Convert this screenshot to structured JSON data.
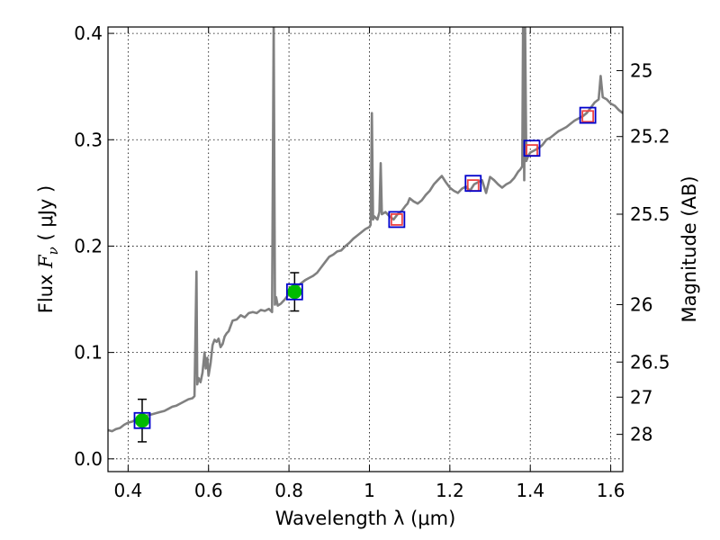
{
  "chart_data": {
    "type": "line",
    "xlabel": "Wavelength  λ (μm)",
    "ylabel_prefix": "Flux  ",
    "ylabel_symbol": "F",
    "ylabel_subscript": "ν",
    "ylabel_suffix": "  ( μJy )",
    "y2label": "Magnitude (AB)",
    "xlim": [
      0.35,
      1.63
    ],
    "ylim": [
      -0.012,
      0.406
    ],
    "grid": true,
    "xticks": [
      {
        "value": 0.4,
        "label": "0.4"
      },
      {
        "value": 0.6,
        "label": "0.6"
      },
      {
        "value": 0.8,
        "label": "0.8"
      },
      {
        "value": 1.0,
        "label": "1"
      },
      {
        "value": 1.2,
        "label": "1.2"
      },
      {
        "value": 1.4,
        "label": "1.4"
      },
      {
        "value": 1.6,
        "label": "1.6"
      }
    ],
    "yticks": [
      {
        "value": 0.0,
        "label": "0.0"
      },
      {
        "value": 0.1,
        "label": "0.1"
      },
      {
        "value": 0.2,
        "label": "0.2"
      },
      {
        "value": 0.3,
        "label": "0.3"
      },
      {
        "value": 0.4,
        "label": "0.4"
      }
    ],
    "y2ticks": [
      {
        "label": "25",
        "flux": 0.365
      },
      {
        "label": "25.2",
        "flux": 0.303
      },
      {
        "label": "25.5",
        "flux": 0.23
      },
      {
        "label": "26",
        "flux": 0.145
      },
      {
        "label": "26.5",
        "flux": 0.091
      },
      {
        "label": "27",
        "flux": 0.058
      },
      {
        "label": "28",
        "flux": 0.023
      }
    ],
    "colors": {
      "spectrum": "#808080",
      "model_box": "#0000cc",
      "observed_point": "#00bb00",
      "predicted_point": "#ee4444",
      "errorbar": "#000000"
    },
    "series": [
      {
        "kind": "model-spectrum",
        "x": [
          0.35,
          0.36,
          0.37,
          0.38,
          0.39,
          0.4,
          0.41,
          0.42,
          0.43,
          0.44,
          0.45,
          0.46,
          0.47,
          0.48,
          0.49,
          0.5,
          0.51,
          0.52,
          0.53,
          0.54,
          0.55,
          0.56,
          0.565,
          0.57,
          0.572,
          0.575,
          0.58,
          0.585,
          0.59,
          0.593,
          0.597,
          0.6,
          0.605,
          0.61,
          0.615,
          0.62,
          0.625,
          0.63,
          0.635,
          0.64,
          0.645,
          0.65,
          0.655,
          0.66,
          0.67,
          0.68,
          0.69,
          0.7,
          0.71,
          0.72,
          0.73,
          0.74,
          0.75,
          0.758,
          0.762,
          0.765,
          0.768,
          0.772,
          0.78,
          0.79,
          0.8,
          0.81,
          0.82,
          0.83,
          0.84,
          0.85,
          0.86,
          0.87,
          0.88,
          0.89,
          0.9,
          0.91,
          0.92,
          0.93,
          0.94,
          0.95,
          0.96,
          0.97,
          0.98,
          0.99,
          1.0,
          1.003,
          1.006,
          1.009,
          1.012,
          1.02,
          1.025,
          1.028,
          1.031,
          1.04,
          1.05,
          1.06,
          1.07,
          1.08,
          1.09,
          1.095,
          1.1,
          1.11,
          1.12,
          1.13,
          1.14,
          1.15,
          1.16,
          1.17,
          1.18,
          1.19,
          1.2,
          1.21,
          1.22,
          1.23,
          1.24,
          1.25,
          1.26,
          1.27,
          1.28,
          1.29,
          1.3,
          1.31,
          1.32,
          1.33,
          1.34,
          1.35,
          1.36,
          1.37,
          1.375,
          1.38,
          1.382,
          1.385,
          1.387,
          1.39,
          1.395,
          1.4,
          1.41,
          1.42,
          1.43,
          1.44,
          1.45,
          1.46,
          1.47,
          1.48,
          1.49,
          1.5,
          1.51,
          1.52,
          1.53,
          1.54,
          1.55,
          1.56,
          1.57,
          1.575,
          1.58,
          1.59,
          1.6,
          1.61,
          1.62,
          1.63
        ],
        "y": [
          0.027,
          0.026,
          0.028,
          0.029,
          0.032,
          0.034,
          0.035,
          0.037,
          0.038,
          0.04,
          0.041,
          0.042,
          0.043,
          0.044,
          0.045,
          0.047,
          0.049,
          0.05,
          0.052,
          0.054,
          0.056,
          0.057,
          0.059,
          0.176,
          0.07,
          0.076,
          0.072,
          0.081,
          0.1,
          0.085,
          0.095,
          0.078,
          0.09,
          0.107,
          0.112,
          0.11,
          0.113,
          0.105,
          0.108,
          0.115,
          0.118,
          0.12,
          0.125,
          0.13,
          0.131,
          0.135,
          0.133,
          0.137,
          0.138,
          0.137,
          0.14,
          0.139,
          0.141,
          0.138,
          0.41,
          0.145,
          0.152,
          0.144,
          0.146,
          0.15,
          0.155,
          0.158,
          0.162,
          0.165,
          0.168,
          0.17,
          0.172,
          0.175,
          0.18,
          0.185,
          0.19,
          0.192,
          0.195,
          0.196,
          0.2,
          0.203,
          0.207,
          0.21,
          0.213,
          0.216,
          0.218,
          0.22,
          0.325,
          0.225,
          0.228,
          0.225,
          0.232,
          0.278,
          0.23,
          0.232,
          0.228,
          0.225,
          0.23,
          0.233,
          0.238,
          0.24,
          0.245,
          0.242,
          0.24,
          0.243,
          0.248,
          0.252,
          0.258,
          0.262,
          0.266,
          0.26,
          0.255,
          0.252,
          0.25,
          0.254,
          0.256,
          0.252,
          0.258,
          0.26,
          0.262,
          0.25,
          0.265,
          0.262,
          0.258,
          0.255,
          0.258,
          0.26,
          0.264,
          0.27,
          0.272,
          0.275,
          0.41,
          0.262,
          0.41,
          0.28,
          0.285,
          0.288,
          0.29,
          0.292,
          0.295,
          0.3,
          0.302,
          0.305,
          0.308,
          0.31,
          0.312,
          0.315,
          0.318,
          0.32,
          0.322,
          0.325,
          0.33,
          0.335,
          0.338,
          0.36,
          0.34,
          0.338,
          0.334,
          0.332,
          0.328,
          0.325
        ]
      },
      {
        "kind": "observed-photometry",
        "points": [
          {
            "x": 0.435,
            "y": 0.036,
            "err": 0.02
          },
          {
            "x": 0.814,
            "y": 0.157,
            "err": 0.018
          }
        ]
      },
      {
        "kind": "model-photometry-box",
        "points": [
          {
            "x": 0.435,
            "y": 0.036
          },
          {
            "x": 0.814,
            "y": 0.157
          },
          {
            "x": 1.068,
            "y": 0.225
          },
          {
            "x": 1.258,
            "y": 0.259
          },
          {
            "x": 1.404,
            "y": 0.292
          },
          {
            "x": 1.543,
            "y": 0.323
          }
        ]
      },
      {
        "kind": "predicted-photometry",
        "points": [
          {
            "x": 1.068,
            "y": 0.225
          },
          {
            "x": 1.258,
            "y": 0.257
          },
          {
            "x": 1.404,
            "y": 0.29
          },
          {
            "x": 1.543,
            "y": 0.322
          }
        ]
      }
    ]
  }
}
